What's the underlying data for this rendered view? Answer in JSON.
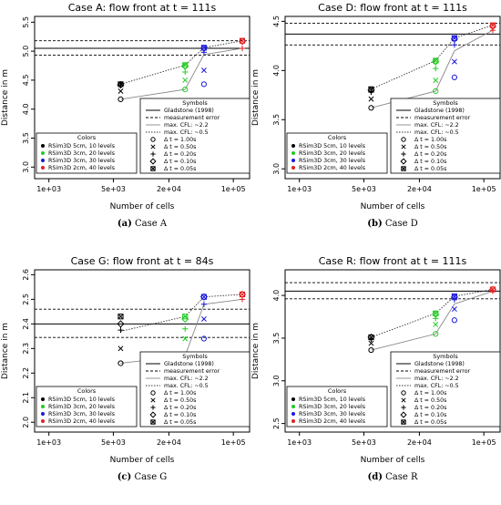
{
  "legend_symbols": {
    "title": "Symbols",
    "items": [
      {
        "label": "Gladstone (1998)",
        "kind": "solid"
      },
      {
        "label": "measurement error",
        "kind": "dashed"
      },
      {
        "label": "max. CFL: ~2.2",
        "kind": "lightsolid"
      },
      {
        "label": "max. CFL: ~0.5",
        "kind": "dotted"
      },
      {
        "label": "Δ t = 1.00s",
        "kind": "circle"
      },
      {
        "label": "Δ t = 0.50s",
        "kind": "cross"
      },
      {
        "label": "Δ t = 0.20s",
        "kind": "plus"
      },
      {
        "label": "Δ t = 0.10s",
        "kind": "diamond"
      },
      {
        "label": "Δ t = 0.05s",
        "kind": "boxx"
      }
    ]
  },
  "legend_colors": {
    "title": "Colors",
    "items": [
      {
        "label": "RSim3D 5cm, 10 levels",
        "color": "#000000"
      },
      {
        "label": "RSim3D 3cm, 20 levels",
        "color": "#22cc22"
      },
      {
        "label": "RSim3D 3cm, 30 levels",
        "color": "#1a1adb"
      },
      {
        "label": "RSim3D 2cm, 40 levels",
        "color": "#e02020"
      }
    ]
  },
  "xaxis": {
    "label": "Number of cells",
    "ticks": [
      "1e+03",
      "5e+03",
      "2e+04",
      "1e+05"
    ]
  },
  "ylabel": "Distance in m",
  "chart_data": [
    {
      "type": "scatter",
      "title": "Case A: flow front at t = 111s",
      "caption_tag": "(a)",
      "caption_text": "Case A",
      "xscale": "log",
      "xlim": [
        700,
        150000
      ],
      "ylim": [
        2.8,
        5.6
      ],
      "yticks": [
        "3.0",
        "3.5",
        "4.0",
        "4.5",
        "5.0",
        "5.5"
      ],
      "gladstone": 5.05,
      "meas_err": [
        4.93,
        5.18
      ],
      "points": [
        {
          "x": 6000,
          "y": 4.17,
          "s": 0,
          "m": "circle"
        },
        {
          "x": 6000,
          "y": 4.31,
          "s": 0,
          "m": "cross"
        },
        {
          "x": 6000,
          "y": 4.42,
          "s": 0,
          "m": "plus"
        },
        {
          "x": 6000,
          "y": 4.42,
          "s": 0,
          "m": "diamond"
        },
        {
          "x": 6000,
          "y": 4.43,
          "s": 0,
          "m": "boxx"
        },
        {
          "x": 30000,
          "y": 4.34,
          "s": 1,
          "m": "circle"
        },
        {
          "x": 30000,
          "y": 4.5,
          "s": 1,
          "m": "cross"
        },
        {
          "x": 30000,
          "y": 4.64,
          "s": 1,
          "m": "plus"
        },
        {
          "x": 30000,
          "y": 4.74,
          "s": 1,
          "m": "diamond"
        },
        {
          "x": 30000,
          "y": 4.76,
          "s": 1,
          "m": "boxx"
        },
        {
          "x": 48000,
          "y": 4.43,
          "s": 2,
          "m": "circle"
        },
        {
          "x": 48000,
          "y": 4.67,
          "s": 2,
          "m": "cross"
        },
        {
          "x": 48000,
          "y": 4.98,
          "s": 2,
          "m": "plus"
        },
        {
          "x": 48000,
          "y": 5.05,
          "s": 2,
          "m": "diamond"
        },
        {
          "x": 48000,
          "y": 5.06,
          "s": 2,
          "m": "boxx"
        },
        {
          "x": 125000,
          "y": 5.05,
          "s": 3,
          "m": "plus"
        },
        {
          "x": 125000,
          "y": 5.17,
          "s": 3,
          "m": "diamond"
        },
        {
          "x": 125000,
          "y": 5.18,
          "s": 3,
          "m": "boxx"
        }
      ],
      "line_cfl22": [
        [
          6000,
          4.17
        ],
        [
          30000,
          4.34
        ],
        [
          48000,
          4.94
        ],
        [
          125000,
          5.05
        ]
      ],
      "line_cfl05": [
        [
          6000,
          4.43
        ],
        [
          30000,
          4.76
        ],
        [
          48000,
          5.06
        ],
        [
          125000,
          5.18
        ]
      ]
    },
    {
      "type": "scatter",
      "title": "Case D: flow front at t = 111s",
      "caption_tag": "(b)",
      "caption_text": "Case D",
      "xscale": "log",
      "xlim": [
        700,
        150000
      ],
      "ylim": [
        2.9,
        4.55
      ],
      "yticks": [
        "3.0",
        "3.5",
        "4.0",
        "4.5"
      ],
      "gladstone": 4.37,
      "meas_err": [
        4.26,
        4.48
      ],
      "points": [
        {
          "x": 6000,
          "y": 3.62,
          "s": 0,
          "m": "circle"
        },
        {
          "x": 6000,
          "y": 3.71,
          "s": 0,
          "m": "cross"
        },
        {
          "x": 6000,
          "y": 3.78,
          "s": 0,
          "m": "plus"
        },
        {
          "x": 6000,
          "y": 3.8,
          "s": 0,
          "m": "diamond"
        },
        {
          "x": 6000,
          "y": 3.81,
          "s": 0,
          "m": "boxx"
        },
        {
          "x": 30000,
          "y": 3.79,
          "s": 1,
          "m": "circle"
        },
        {
          "x": 30000,
          "y": 3.9,
          "s": 1,
          "m": "cross"
        },
        {
          "x": 30000,
          "y": 4.02,
          "s": 1,
          "m": "plus"
        },
        {
          "x": 30000,
          "y": 4.09,
          "s": 1,
          "m": "diamond"
        },
        {
          "x": 30000,
          "y": 4.1,
          "s": 1,
          "m": "boxx"
        },
        {
          "x": 48000,
          "y": 3.93,
          "s": 2,
          "m": "circle"
        },
        {
          "x": 48000,
          "y": 4.09,
          "s": 2,
          "m": "cross"
        },
        {
          "x": 48000,
          "y": 4.26,
          "s": 2,
          "m": "plus"
        },
        {
          "x": 48000,
          "y": 4.32,
          "s": 2,
          "m": "diamond"
        },
        {
          "x": 48000,
          "y": 4.33,
          "s": 2,
          "m": "boxx"
        },
        {
          "x": 125000,
          "y": 4.41,
          "s": 3,
          "m": "plus"
        },
        {
          "x": 125000,
          "y": 4.45,
          "s": 3,
          "m": "diamond"
        },
        {
          "x": 125000,
          "y": 4.46,
          "s": 3,
          "m": "boxx"
        }
      ],
      "line_cfl22": [
        [
          6000,
          3.62
        ],
        [
          30000,
          3.79
        ],
        [
          48000,
          4.2
        ],
        [
          125000,
          4.41
        ]
      ],
      "line_cfl05": [
        [
          6000,
          3.81
        ],
        [
          30000,
          4.1
        ],
        [
          48000,
          4.33
        ],
        [
          125000,
          4.46
        ]
      ]
    },
    {
      "type": "scatter",
      "title": "Case G: flow front at t = 84s",
      "caption_tag": "(c)",
      "caption_text": "Case G",
      "xscale": "log",
      "xlim": [
        700,
        150000
      ],
      "ylim": [
        1.96,
        2.62
      ],
      "yticks": [
        "2.0",
        "2.1",
        "2.2",
        "2.3",
        "2.4",
        "2.5",
        "2.6"
      ],
      "gladstone": 2.4,
      "meas_err": [
        2.345,
        2.46
      ],
      "points": [
        {
          "x": 6000,
          "y": 2.24,
          "s": 0,
          "m": "circle"
        },
        {
          "x": 6000,
          "y": 2.3,
          "s": 0,
          "m": "cross"
        },
        {
          "x": 6000,
          "y": 2.375,
          "s": 0,
          "m": "plus"
        },
        {
          "x": 6000,
          "y": 2.4,
          "s": 0,
          "m": "diamond"
        },
        {
          "x": 6000,
          "y": 2.43,
          "s": 0,
          "m": "boxx"
        },
        {
          "x": 30000,
          "y": 2.27,
          "s": 1,
          "m": "circle"
        },
        {
          "x": 30000,
          "y": 2.34,
          "s": 1,
          "m": "cross"
        },
        {
          "x": 30000,
          "y": 2.38,
          "s": 1,
          "m": "plus"
        },
        {
          "x": 30000,
          "y": 2.42,
          "s": 1,
          "m": "diamond"
        },
        {
          "x": 30000,
          "y": 2.43,
          "s": 1,
          "m": "boxx"
        },
        {
          "x": 48000,
          "y": 2.34,
          "s": 2,
          "m": "circle"
        },
        {
          "x": 48000,
          "y": 2.42,
          "s": 2,
          "m": "cross"
        },
        {
          "x": 48000,
          "y": 2.48,
          "s": 2,
          "m": "plus"
        },
        {
          "x": 48000,
          "y": 2.51,
          "s": 2,
          "m": "diamond"
        },
        {
          "x": 48000,
          "y": 2.51,
          "s": 2,
          "m": "boxx"
        },
        {
          "x": 125000,
          "y": 2.5,
          "s": 3,
          "m": "plus"
        },
        {
          "x": 125000,
          "y": 2.52,
          "s": 3,
          "m": "diamond"
        },
        {
          "x": 125000,
          "y": 2.52,
          "s": 3,
          "m": "boxx"
        }
      ],
      "line_cfl22": [
        [
          6000,
          2.24
        ],
        [
          30000,
          2.27
        ],
        [
          48000,
          2.48
        ],
        [
          125000,
          2.5
        ]
      ],
      "line_cfl05": [
        [
          6000,
          2.37
        ],
        [
          30000,
          2.43
        ],
        [
          48000,
          2.51
        ],
        [
          125000,
          2.52
        ]
      ]
    },
    {
      "type": "scatter",
      "title": "Case R: flow front at t = 111s",
      "caption_tag": "(d)",
      "caption_text": "Case R",
      "xscale": "log",
      "xlim": [
        700,
        150000
      ],
      "ylim": [
        2.4,
        4.3
      ],
      "yticks": [
        "2.5",
        "3.0",
        "3.5",
        "4.0"
      ],
      "gladstone": 4.05,
      "meas_err": [
        3.96,
        4.15
      ],
      "points": [
        {
          "x": 6000,
          "y": 3.36,
          "s": 0,
          "m": "circle"
        },
        {
          "x": 6000,
          "y": 3.44,
          "s": 0,
          "m": "cross"
        },
        {
          "x": 6000,
          "y": 3.49,
          "s": 0,
          "m": "plus"
        },
        {
          "x": 6000,
          "y": 3.51,
          "s": 0,
          "m": "diamond"
        },
        {
          "x": 6000,
          "y": 3.51,
          "s": 0,
          "m": "boxx"
        },
        {
          "x": 30000,
          "y": 3.55,
          "s": 1,
          "m": "circle"
        },
        {
          "x": 30000,
          "y": 3.66,
          "s": 1,
          "m": "cross"
        },
        {
          "x": 30000,
          "y": 3.73,
          "s": 1,
          "m": "plus"
        },
        {
          "x": 30000,
          "y": 3.78,
          "s": 1,
          "m": "diamond"
        },
        {
          "x": 30000,
          "y": 3.79,
          "s": 1,
          "m": "boxx"
        },
        {
          "x": 48000,
          "y": 3.71,
          "s": 2,
          "m": "circle"
        },
        {
          "x": 48000,
          "y": 3.84,
          "s": 2,
          "m": "cross"
        },
        {
          "x": 48000,
          "y": 3.95,
          "s": 2,
          "m": "plus"
        },
        {
          "x": 48000,
          "y": 3.98,
          "s": 2,
          "m": "diamond"
        },
        {
          "x": 48000,
          "y": 3.99,
          "s": 2,
          "m": "boxx"
        },
        {
          "x": 125000,
          "y": 4.05,
          "s": 3,
          "m": "plus"
        },
        {
          "x": 125000,
          "y": 4.07,
          "s": 3,
          "m": "diamond"
        },
        {
          "x": 125000,
          "y": 4.07,
          "s": 3,
          "m": "boxx"
        }
      ],
      "line_cfl22": [
        [
          6000,
          3.36
        ],
        [
          30000,
          3.55
        ],
        [
          48000,
          3.9
        ],
        [
          125000,
          4.05
        ]
      ],
      "line_cfl05": [
        [
          6000,
          3.51
        ],
        [
          30000,
          3.79
        ],
        [
          48000,
          3.99
        ],
        [
          125000,
          4.07
        ]
      ]
    }
  ]
}
